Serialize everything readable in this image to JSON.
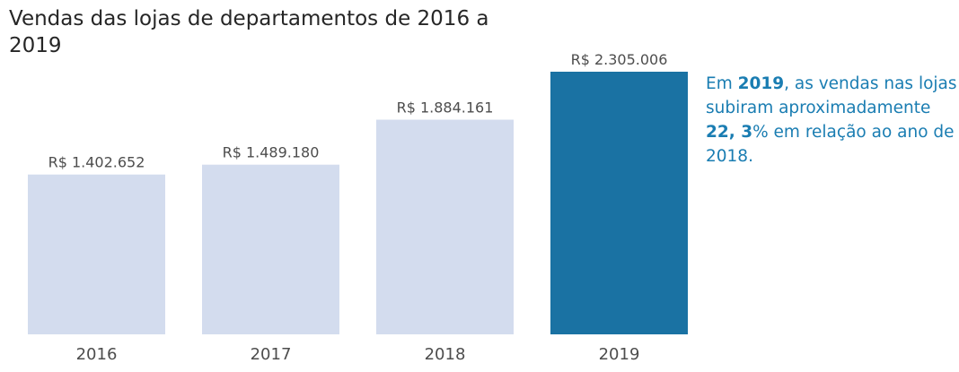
{
  "chart_data": {
    "type": "bar",
    "title": "Vendas das lojas de departamentos de 2016 a 2019",
    "xlabel": "",
    "ylabel": "",
    "categories": [
      "2016",
      "2017",
      "2018",
      "2019"
    ],
    "values": [
      1402652,
      1489180,
      1884161,
      2305006
    ],
    "value_labels": [
      "R$ 1.402.652",
      "R$ 1.489.180",
      "R$ 1.884.161",
      "R$ 2.305.006"
    ],
    "ylim": [
      0,
      2305006
    ],
    "grid": false,
    "bar_color": "#d3dcee",
    "highlight_color": "#1a72a3",
    "highlight_index": 3,
    "label_color": "#4d4d4d"
  },
  "annotation": {
    "p1": "Em ",
    "year": "2019",
    "p2": ", as vendas nas lojas subiram aproximadamente ",
    "pct": "22, 3",
    "p3": "% em relação ao ano de 2018.",
    "color": "#1a7db2"
  }
}
